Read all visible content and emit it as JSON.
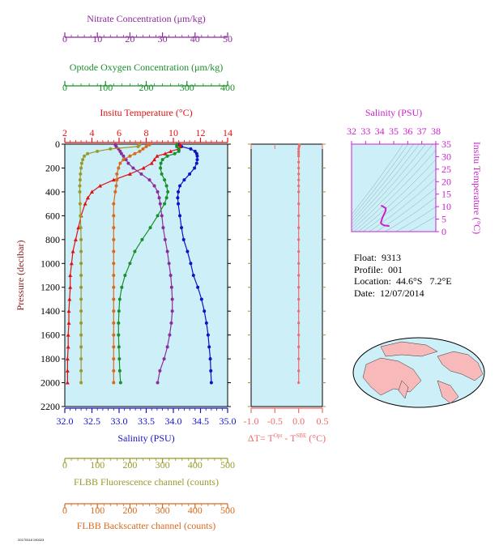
{
  "chart_data": {
    "type": "line",
    "yaxis": {
      "label": "Pressure (decibar)",
      "range": [
        0,
        2200
      ],
      "ticks": [
        "0",
        "200",
        "400",
        "600",
        "800",
        "1000",
        "1200",
        "1400",
        "1600",
        "1800",
        "2000",
        "2200"
      ]
    },
    "axes": {
      "nitrate": {
        "label": "Nitrate Concentration (μm/kg)",
        "range": [
          0,
          50
        ],
        "ticks": [
          "0",
          "10",
          "20",
          "30",
          "40",
          "50"
        ],
        "color": "#8b2c9a"
      },
      "oxygen": {
        "label": "Optode Oxygen Concentration (μm/kg)",
        "range": [
          0,
          400
        ],
        "ticks": [
          "0",
          "100",
          "200",
          "300",
          "400"
        ],
        "color": "#18902b"
      },
      "temperature": {
        "label": "Insitu Temperature (°C)",
        "range": [
          2,
          14
        ],
        "ticks": [
          "2",
          "4",
          "6",
          "8",
          "10",
          "12",
          "14"
        ],
        "color": "#e01010"
      },
      "salinity": {
        "label": "Salinity (PSU)",
        "range": [
          32,
          35
        ],
        "ticks": [
          "32.0",
          "32.5",
          "33.0",
          "33.5",
          "34.0",
          "34.5",
          "35.0"
        ],
        "color": "#1414c8"
      },
      "fluorescence": {
        "label": "FLBB Fluorescence channel (counts)",
        "range": [
          0,
          500
        ],
        "ticks": [
          "0",
          "100",
          "200",
          "300",
          "400",
          "500"
        ],
        "color": "#9a9a2a"
      },
      "backscatter": {
        "label": "FLBB Backscatter channel (counts)",
        "range": [
          0,
          500
        ],
        "ticks": [
          "0",
          "100",
          "200",
          "300",
          "400",
          "500"
        ],
        "color": "#d86a1c"
      }
    },
    "series": [
      {
        "name": "Salinity",
        "axis": "salinity",
        "color": "#1010c8",
        "p": [
          5,
          20,
          40,
          60,
          80,
          100,
          130,
          160,
          200,
          250,
          300,
          350,
          400,
          450,
          500,
          600,
          700,
          800,
          900,
          1000,
          1100,
          1200,
          1300,
          1400,
          1500,
          1600,
          1700,
          1800,
          1900,
          2000
        ],
        "v": [
          34.1,
          34.15,
          34.32,
          34.4,
          34.43,
          34.44,
          34.44,
          34.43,
          34.39,
          34.3,
          34.2,
          34.12,
          34.09,
          34.08,
          34.09,
          34.12,
          34.15,
          34.19,
          34.26,
          34.32,
          34.37,
          34.45,
          34.52,
          34.57,
          34.61,
          34.64,
          34.66,
          34.68,
          34.69,
          34.7
        ]
      },
      {
        "name": "Temperature",
        "axis": "temperature",
        "color": "#e01010",
        "p": [
          5,
          20,
          40,
          60,
          80,
          100,
          130,
          160,
          200,
          250,
          300,
          350,
          400,
          450,
          500,
          600,
          700,
          800,
          900,
          1000,
          1100,
          1200,
          1300,
          1400,
          1500,
          1600,
          1700,
          1800,
          1900,
          2000
        ],
        "v": [
          10.5,
          10.5,
          10.4,
          9.8,
          9.4,
          8.8,
          8.6,
          8.4,
          7.8,
          6.8,
          5.6,
          4.6,
          4.0,
          3.7,
          3.5,
          3.2,
          3.0,
          2.8,
          2.6,
          2.5,
          2.4,
          2.4,
          2.35,
          2.3,
          2.3,
          2.25,
          2.25,
          2.2,
          2.2,
          2.2
        ]
      },
      {
        "name": "Nitrate",
        "axis": "nitrate",
        "color": "#8b2c9a",
        "p": [
          5,
          20,
          40,
          60,
          80,
          100,
          130,
          160,
          200,
          250,
          300,
          350,
          400,
          450,
          500,
          600,
          700,
          800,
          900,
          1000,
          1100,
          1200,
          1300,
          1400,
          1500,
          1600,
          1700,
          1800,
          1900,
          2000
        ],
        "v": [
          15.5,
          15.8,
          16.5,
          17.0,
          17.4,
          18.0,
          18.8,
          19.5,
          21.0,
          23.5,
          26.0,
          27.5,
          28.5,
          29.0,
          29.3,
          29.8,
          30.2,
          30.8,
          31.5,
          32.0,
          32.5,
          32.8,
          33.0,
          33.0,
          32.7,
          32.2,
          31.5,
          30.5,
          29.2,
          28.5
        ]
      },
      {
        "name": "Oxygen",
        "axis": "oxygen",
        "color": "#18902b",
        "p": [
          5,
          20,
          40,
          60,
          80,
          100,
          130,
          160,
          200,
          250,
          300,
          350,
          400,
          450,
          500,
          600,
          700,
          800,
          900,
          1000,
          1100,
          1200,
          1300,
          1400,
          1500,
          1600,
          1700,
          1800,
          1900,
          2000
        ],
        "v": [
          275,
          275,
          280,
          280,
          270,
          252,
          240,
          236,
          235,
          238,
          245,
          250,
          253,
          250,
          245,
          228,
          210,
          190,
          172,
          160,
          148,
          140,
          135,
          133,
          132,
          132,
          133,
          134,
          135,
          137
        ]
      },
      {
        "name": "Fluorescence",
        "axis": "fluorescence",
        "color": "#9a9a2a",
        "p": [
          5,
          20,
          40,
          60,
          80,
          100,
          130,
          160,
          200,
          250,
          300,
          350,
          400,
          500,
          600,
          700,
          800,
          900,
          1000,
          1100,
          1200,
          1300,
          1400,
          1500,
          1600,
          1700,
          1800,
          1900,
          2000
        ],
        "v": [
          230,
          225,
          140,
          100,
          70,
          60,
          55,
          52,
          50,
          48,
          47,
          46,
          46,
          47,
          48,
          49,
          50,
          50,
          50,
          50,
          50,
          50,
          50,
          50,
          50,
          50,
          50,
          50,
          50
        ]
      },
      {
        "name": "Backscatter",
        "axis": "backscatter",
        "color": "#d86a1c",
        "p": [
          5,
          20,
          40,
          60,
          80,
          100,
          130,
          160,
          200,
          250,
          300,
          350,
          400,
          500,
          600,
          700,
          800,
          900,
          1000,
          1100,
          1200,
          1300,
          1400,
          1500,
          1600,
          1700,
          1800,
          1900,
          2000
        ],
        "v": [
          260,
          250,
          240,
          230,
          215,
          200,
          180,
          170,
          165,
          160,
          160,
          158,
          155,
          150,
          150,
          150,
          150,
          150,
          150,
          150,
          150,
          150,
          150,
          150,
          150,
          150,
          150,
          150,
          150
        ]
      }
    ],
    "delta_t": {
      "xlabel": "ΔT= T",
      "sup1": "Opt",
      "mid": " - T",
      "sup2": "SBE",
      "unit": " (°C)",
      "range": [
        -1.0,
        0.5
      ],
      "ticks": [
        "-1.0",
        "-0.5",
        "0.0",
        "0.5"
      ],
      "color": "#f06a6a",
      "p": [
        5,
        20,
        40,
        60,
        80,
        100,
        150,
        200,
        250,
        300,
        350,
        400,
        500,
        600,
        700,
        800,
        900,
        1000,
        1100,
        1200,
        1300,
        1400,
        1500,
        1600,
        1700,
        1800,
        1900,
        2000
      ],
      "v": [
        0.02,
        0.01,
        0.0,
        0.0,
        0.0,
        0.0,
        0.0,
        0.0,
        0.0,
        0.0,
        0.0,
        0.0,
        0.0,
        0.0,
        0.0,
        0.0,
        0.0,
        0.0,
        0.0,
        0.0,
        0.0,
        0.0,
        0.0,
        0.0,
        0.0,
        0.0,
        0.0,
        0.0
      ]
    },
    "ts_diagram": {
      "title": "Salinity (PSU)",
      "ylabel": "Insitu Temperature (°C)",
      "xrange": [
        32,
        38
      ],
      "yrange": [
        0,
        35
      ],
      "xticks": [
        "32",
        "33",
        "34",
        "35",
        "36",
        "37",
        "38"
      ],
      "yticks": [
        "0",
        "5",
        "10",
        "15",
        "20",
        "25",
        "30",
        "35"
      ],
      "salinity": [
        34.1,
        34.43,
        34.43,
        34.2,
        34.08,
        34.15,
        34.32,
        34.45,
        34.6,
        34.66,
        34.7
      ],
      "temperature": [
        10.5,
        9.4,
        8.4,
        5.6,
        3.5,
        3.0,
        2.5,
        2.4,
        2.3,
        2.25,
        2.2
      ]
    }
  },
  "float_info": {
    "float_label": "Float:",
    "float": "9313",
    "profile_label": "Profile:",
    "profile": "001",
    "location_label": "Location:",
    "location": "44.6°S   7.2°E",
    "date_label": "Date:",
    "date": "12/07/2014"
  },
  "footer_text": "20170318 190023"
}
